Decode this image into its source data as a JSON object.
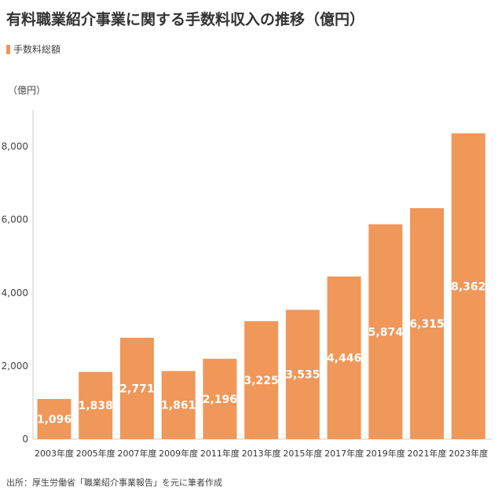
{
  "colors": {
    "bar": "#f0975a",
    "axis": "#cccccc",
    "title": "#333333"
  },
  "chart_data": {
    "type": "bar",
    "title": "有料職業紹介事業に関する手数料収入の推移（億円）",
    "ylabel": "（億円）",
    "xlabel": "",
    "legend": {
      "label": "手数料総額",
      "position": "top-left"
    },
    "categories": [
      "2003年度",
      "2005年度",
      "2007年度",
      "2009年度",
      "2011年度",
      "2013年度",
      "2015年度",
      "2017年度",
      "2019年度",
      "2021年度",
      "2023年度"
    ],
    "values": [
      1096,
      1838,
      2771,
      1861,
      2196,
      3225,
      3535,
      4446,
      5874,
      6315,
      8362
    ],
    "value_labels": [
      "1,096",
      "1,838",
      "2,771",
      "1,861",
      "2,196",
      "3,225",
      "3,535",
      "4,446",
      "5,874",
      "6,315",
      "8,362"
    ],
    "ylim": [
      0,
      9000
    ],
    "yticks": [
      0,
      2000,
      4000,
      6000,
      8000
    ],
    "ytick_labels": [
      "0",
      "2,000",
      "4,000",
      "6,000",
      "8,000"
    ],
    "grid": false
  },
  "source": "出所：厚生労働省「職業紹介事業報告」を元に筆者作成"
}
